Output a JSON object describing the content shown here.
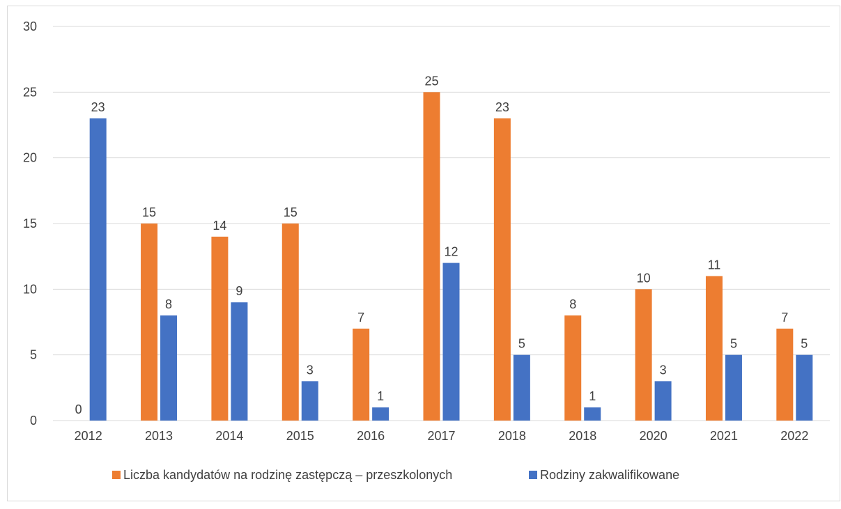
{
  "chart_data": {
    "type": "bar",
    "title": "",
    "xlabel": "",
    "ylabel": "",
    "categories": [
      "2012",
      "2013",
      "2014",
      "2015",
      "2016",
      "2017",
      "2018",
      "2018",
      "2020",
      "2021",
      "2022"
    ],
    "series": [
      {
        "name": "Liczba kandydatów na rodzinę zastępczą – przeszkolonych",
        "color": "#ed7d31",
        "values": [
          0,
          15,
          14,
          15,
          7,
          25,
          23,
          8,
          10,
          11,
          7
        ]
      },
      {
        "name": "Rodziny zakwalifikowane",
        "color": "#4472c4",
        "values": [
          23,
          8,
          9,
          3,
          1,
          12,
          5,
          1,
          3,
          5,
          5
        ]
      }
    ],
    "ylim": [
      0,
      30
    ],
    "yticks": [
      0,
      5,
      10,
      15,
      20,
      25,
      30
    ],
    "grid": true,
    "legend_position": "bottom",
    "data_labels": true
  }
}
